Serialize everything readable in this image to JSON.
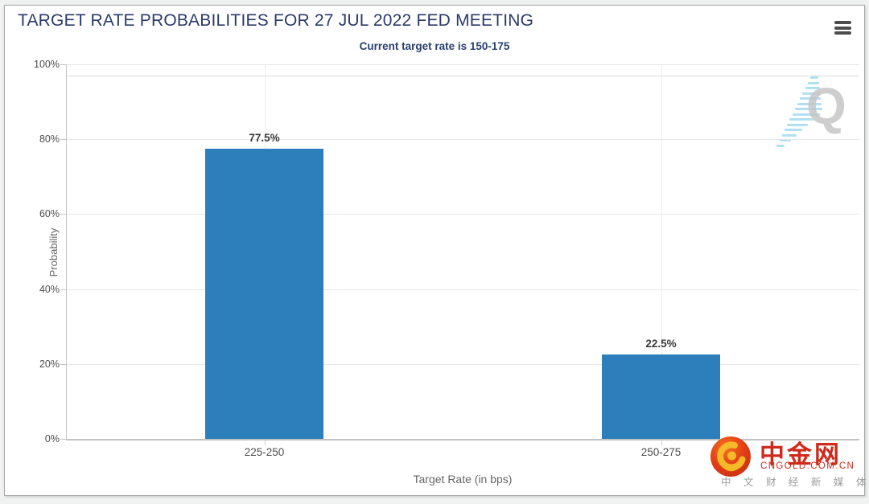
{
  "header": {
    "menu_icon": "hamburger-icon"
  },
  "chart_data": {
    "type": "bar",
    "title": "TARGET RATE PROBABILITIES FOR 27 JUL 2022 FED MEETING",
    "subtitle": "Current target rate is 150-175",
    "categories": [
      "225-250",
      "250-275"
    ],
    "values": [
      77.5,
      22.5
    ],
    "value_labels": [
      "77.5%",
      "22.5%"
    ],
    "xlabel": "Target Rate (in bps)",
    "ylabel": "Probability",
    "ylim": [
      0,
      100
    ],
    "yticks": [
      0,
      20,
      40,
      60,
      80,
      100
    ],
    "ytick_suffix": "%",
    "grid": true,
    "legend": "none",
    "bar_color": "#2d7fbb"
  },
  "watermark": {
    "letter": "Q"
  },
  "branding": {
    "logo_icon": "cngold-swirl-logo",
    "name": "中金网",
    "domain": "CNGOLD.COM.CN",
    "tagline": "中 文 财 经 新 媒 体"
  },
  "colors": {
    "bar": "#2d7fbb",
    "title_text": "#2a3b69",
    "brand_red": "#cf2a1b",
    "watermark_gray": "#c6c6c6",
    "watermark_blue": "#a9ddf2"
  }
}
